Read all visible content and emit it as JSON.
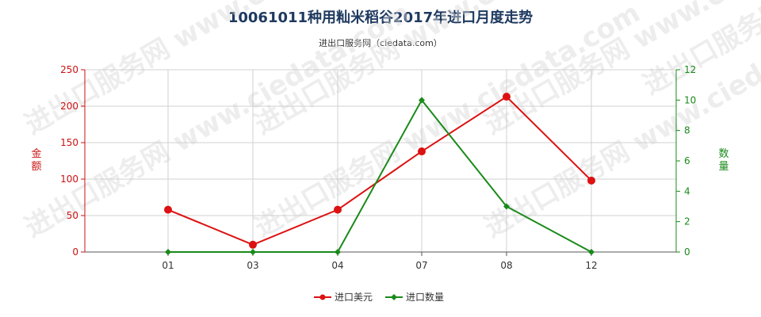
{
  "title": "10061011种用籼米稻谷2017年进口月度走势",
  "subtitle": "进出口服务网（ciedata.com）",
  "watermark": "进出口服务网 www.ciedata.com",
  "colors": {
    "usd": "#dd1111",
    "qty": "#1a8a1a",
    "title": "#1f3a60",
    "grid": "#cccccc"
  },
  "chart_data": {
    "type": "line",
    "categories": [
      "01",
      "03",
      "04",
      "07",
      "08",
      "12"
    ],
    "y_left": {
      "label": "金额",
      "range": [
        0,
        250
      ],
      "ticks": [
        0,
        50,
        100,
        150,
        200,
        250
      ]
    },
    "y_right": {
      "label": "数量",
      "range": [
        0,
        12
      ],
      "ticks": [
        0,
        2,
        4,
        6,
        8,
        10,
        12
      ]
    },
    "series": [
      {
        "name": "进口美元",
        "axis": "left",
        "color": "#dd1111",
        "values": [
          58,
          10,
          58,
          138,
          213,
          98
        ]
      },
      {
        "name": "进口数量",
        "axis": "right",
        "color": "#1a8a1a",
        "values": [
          0,
          0,
          0,
          10,
          3,
          0
        ]
      }
    ],
    "grid": true,
    "legend": "bottom-center"
  }
}
